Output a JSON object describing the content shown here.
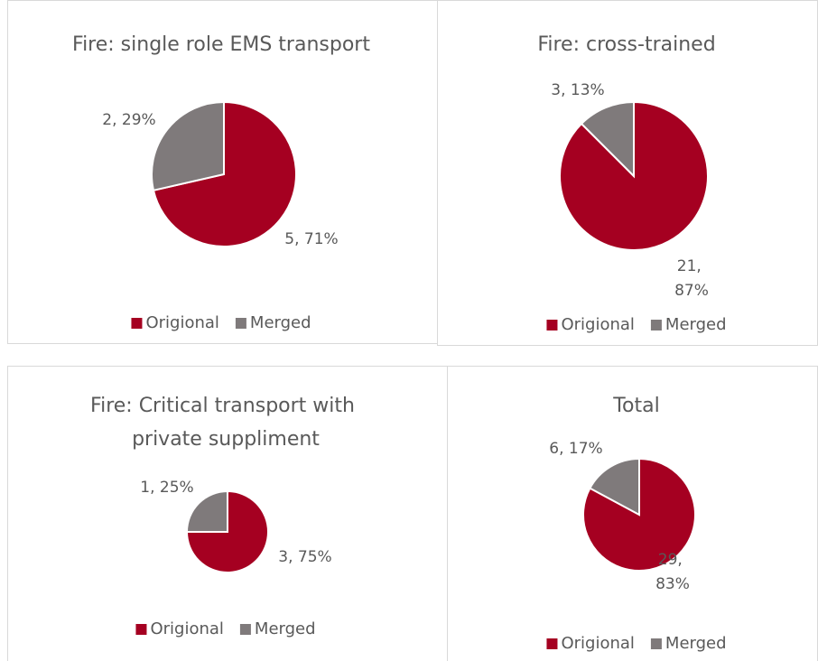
{
  "chart_data": [
    {
      "type": "pie",
      "title": "Fire: single role EMS transport",
      "categories": [
        "Origional",
        "Merged"
      ],
      "values": [
        5,
        2
      ],
      "value_labels": [
        "5, 71%",
        "2, 29%"
      ],
      "colors": [
        "#a50021",
        "#7f7a7b"
      ],
      "legend": "bottom"
    },
    {
      "type": "pie",
      "title": "Fire: cross-trained",
      "categories": [
        "Origional",
        "Merged"
      ],
      "values": [
        21,
        3
      ],
      "value_labels": [
        "21, 87%",
        "3, 13%"
      ],
      "colors": [
        "#a50021",
        "#7f7a7b"
      ],
      "legend": "bottom"
    },
    {
      "type": "pie",
      "title": "Fire: Critical transport with private suppliment",
      "categories": [
        "Origional",
        "Merged"
      ],
      "values": [
        3,
        1
      ],
      "value_labels": [
        "3, 75%",
        "1, 25%"
      ],
      "colors": [
        "#a50021",
        "#7f7a7b"
      ],
      "legend": "bottom"
    },
    {
      "type": "pie",
      "title": "Total",
      "categories": [
        "Origional",
        "Merged"
      ],
      "values": [
        29,
        6
      ],
      "value_labels": [
        "29, 83%",
        "6, 17%"
      ],
      "colors": [
        "#a50021",
        "#7f7a7b"
      ],
      "legend": "bottom"
    }
  ]
}
